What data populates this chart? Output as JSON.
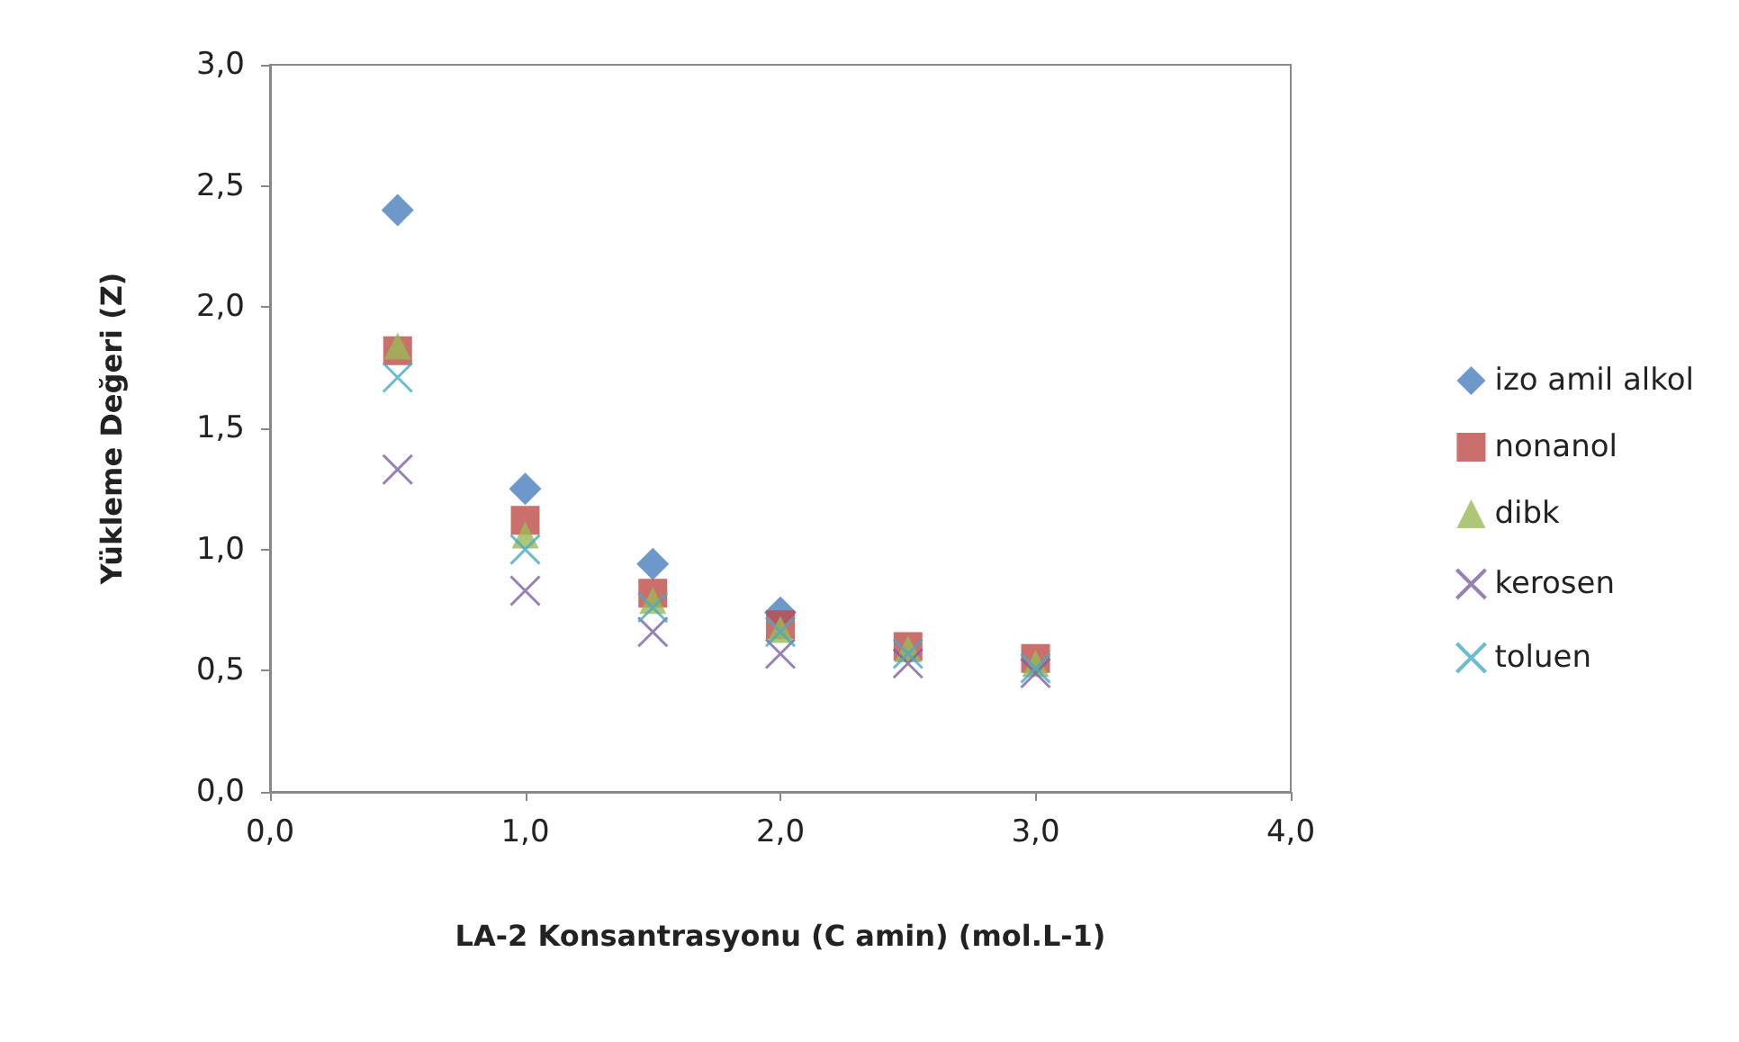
{
  "chart_data": {
    "type": "scatter",
    "xlabel": "LA-2 Konsantrasyonu (C amin) (mol.L-1)",
    "ylabel": "Yükleme Değeri (Z)",
    "x": [
      0.5,
      1.0,
      1.5,
      2.0,
      2.5,
      3.0
    ],
    "series": [
      {
        "name": "izo amil alkol",
        "color": "#4a7ebb",
        "marker": "diamond",
        "values": [
          2.4,
          1.25,
          0.94,
          0.74,
          null,
          null
        ]
      },
      {
        "name": "nonanol",
        "color": "#be4b48",
        "marker": "square",
        "values": [
          1.82,
          1.12,
          0.82,
          0.69,
          0.6,
          0.55
        ]
      },
      {
        "name": "dibk",
        "color": "#98b954",
        "marker": "triangle",
        "values": [
          1.84,
          1.06,
          0.79,
          0.67,
          0.59,
          0.53
        ]
      },
      {
        "name": "kerosen",
        "color": "#7d60a0",
        "marker": "cross",
        "values": [
          1.33,
          0.83,
          0.66,
          0.57,
          0.53,
          0.49
        ]
      },
      {
        "name": "toluen",
        "color": "#46aac5",
        "marker": "cross",
        "values": [
          1.71,
          1.0,
          0.76,
          0.66,
          0.57,
          0.51
        ]
      }
    ],
    "xlim": [
      0,
      4
    ],
    "xticks": [
      {
        "value": 0,
        "label": "0,0"
      },
      {
        "value": 1,
        "label": "1,0"
      },
      {
        "value": 2,
        "label": "2,0"
      },
      {
        "value": 3,
        "label": "3,0"
      },
      {
        "value": 4,
        "label": "4,0"
      }
    ],
    "ylim": [
      0,
      3
    ],
    "yticks": [
      {
        "value": 0,
        "label": "0,0"
      },
      {
        "value": 0.5,
        "label": "0,5"
      },
      {
        "value": 1,
        "label": "1,0"
      },
      {
        "value": 1.5,
        "label": "1,5"
      },
      {
        "value": 2,
        "label": "2,0"
      },
      {
        "value": 2.5,
        "label": "2,5"
      },
      {
        "value": 3,
        "label": "3,0"
      }
    ],
    "grid": false,
    "legend": "right"
  }
}
